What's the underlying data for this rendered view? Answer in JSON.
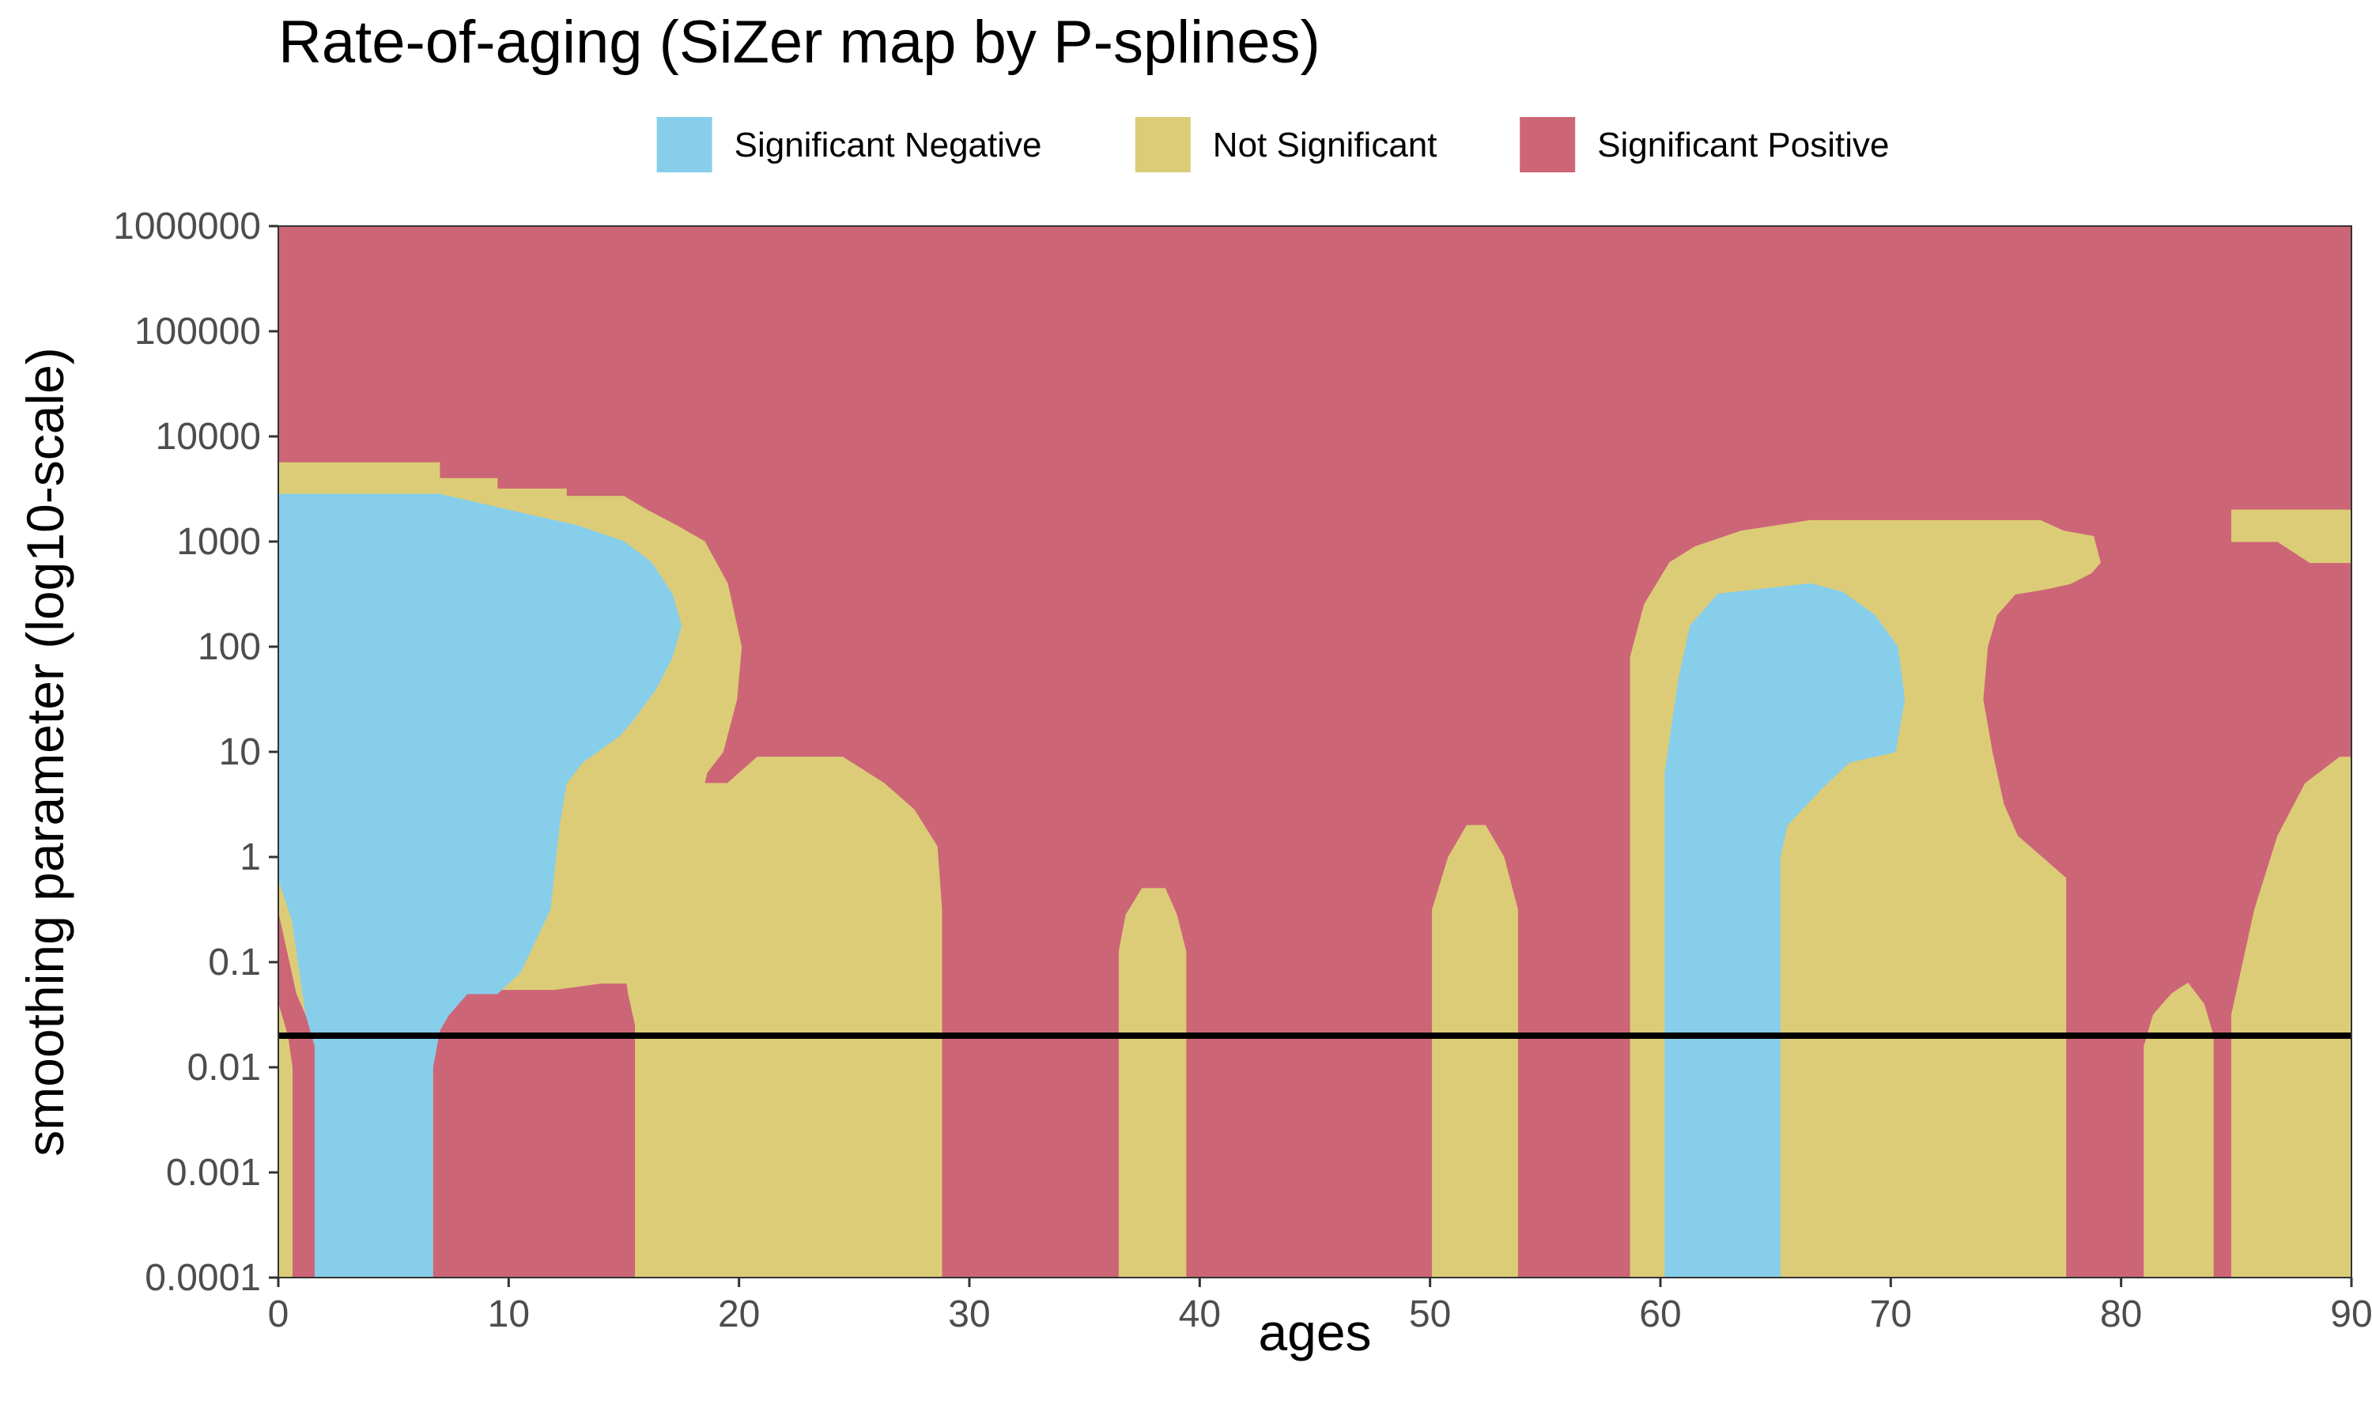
{
  "chart_data": {
    "type": "heatmap",
    "title": "Rate-of-aging (SiZer map by P-splines)",
    "xlabel": "ages",
    "ylabel": "smoothing parameter (log10-scale)",
    "xlim": [
      0,
      90
    ],
    "ylim": [
      0.0001,
      1000000
    ],
    "y_scale": "log10",
    "x_ticks": [
      0,
      10,
      20,
      30,
      40,
      50,
      60,
      70,
      80,
      90
    ],
    "y_ticks": [
      0.0001,
      0.001,
      0.01,
      0.1,
      1,
      10,
      100,
      1000,
      10000,
      100000,
      1000000
    ],
    "y_tick_labels": [
      "0.0001",
      "0.001",
      "0.01",
      "0.1",
      "1",
      "10",
      "100",
      "1000",
      "10000",
      "100000",
      "1000000"
    ],
    "legend": {
      "position": "top",
      "entries": [
        {
          "label": "Significant Negative",
          "color": "#87CEEB"
        },
        {
          "label": "Not Significant",
          "color": "#DDCC77"
        },
        {
          "label": "Significant Positive",
          "color": "#CC6677"
        }
      ]
    },
    "background_category": "Significant Positive",
    "reference_line": {
      "orientation": "horizontal",
      "y": 0.02,
      "color": "#000000"
    },
    "regions": [
      {
        "category": "Not Significant",
        "points": [
          [
            0,
            3.75
          ],
          [
            7,
            3.75
          ],
          [
            7,
            3.6
          ],
          [
            9.5,
            3.6
          ],
          [
            9.5,
            3.5
          ],
          [
            12.5,
            3.5
          ],
          [
            12.5,
            3.43
          ],
          [
            15,
            3.43
          ],
          [
            16,
            3.3
          ],
          [
            17.3,
            3.15
          ],
          [
            18.5,
            3.0
          ],
          [
            19.5,
            2.6
          ],
          [
            20.1,
            2.0
          ],
          [
            19.9,
            1.5
          ],
          [
            19.3,
            1.0
          ],
          [
            18.6,
            0.8
          ],
          [
            18.4,
            0.6
          ],
          [
            17.8,
            0.4
          ],
          [
            17.5,
            0.15
          ],
          [
            17.3,
            -0.3
          ],
          [
            17.3,
            -0.5
          ],
          [
            17,
            -0.8
          ],
          [
            17.5,
            -1.3
          ],
          [
            17.9,
            -1.5
          ],
          [
            18.8,
            -1.8
          ],
          [
            19.2,
            -2.0
          ],
          [
            19.6,
            -2.5
          ],
          [
            19.6,
            -4.0
          ],
          [
            15.5,
            -4.0
          ],
          [
            15.5,
            -1.6
          ],
          [
            15.2,
            -1.3
          ],
          [
            15.0,
            -1.0
          ],
          [
            14.7,
            -0.7
          ],
          [
            14.3,
            -0.5
          ],
          [
            14.3,
            0.0
          ],
          [
            14.8,
            0.35
          ],
          [
            15.3,
            0.45
          ],
          [
            17.7,
            0.45
          ],
          [
            18.3,
            0.2
          ],
          [
            18.3,
            -0.5
          ],
          [
            18.0,
            -1.0
          ],
          [
            17.5,
            -1.5
          ],
          [
            17.3,
            -1.7
          ],
          [
            16.4,
            -1.2
          ],
          [
            14.0,
            -1.2
          ],
          [
            12.0,
            -1.26
          ],
          [
            8.0,
            -1.26
          ],
          [
            7.4,
            -1.5
          ],
          [
            6.8,
            -1.7
          ],
          [
            6.7,
            -2.0
          ],
          [
            6.7,
            -4.0
          ],
          [
            1.6,
            -4.0
          ],
          [
            1.6,
            -1.7
          ],
          [
            0.8,
            -1.3
          ],
          [
            0.3,
            -0.8
          ],
          [
            0,
            -0.5
          ]
        ]
      },
      {
        "category": "Not Significant",
        "points": [
          [
            0,
            -1.4
          ],
          [
            0.4,
            -1.7
          ],
          [
            0.6,
            -2.0
          ],
          [
            0.6,
            -4.0
          ],
          [
            0,
            -4.0
          ]
        ]
      },
      {
        "category": "Not Significant",
        "points": [
          [
            16.9,
            -4.0
          ],
          [
            16.9,
            -0.5
          ],
          [
            17.8,
            0.4
          ],
          [
            17.8,
            0.7
          ],
          [
            19.5,
            0.7
          ],
          [
            20.8,
            0.95
          ],
          [
            24.5,
            0.95
          ],
          [
            26.3,
            0.7
          ],
          [
            27.6,
            0.45
          ],
          [
            28.6,
            0.1
          ],
          [
            28.8,
            -0.5
          ],
          [
            28.8,
            -4.0
          ]
        ]
      },
      {
        "category": "Not Significant",
        "points": [
          [
            36.5,
            -4.0
          ],
          [
            36.5,
            -0.9
          ],
          [
            36.8,
            -0.55
          ],
          [
            37.5,
            -0.3
          ],
          [
            38.5,
            -0.3
          ],
          [
            39.0,
            -0.55
          ],
          [
            39.4,
            -0.9
          ],
          [
            39.4,
            -4.0
          ]
        ]
      },
      {
        "category": "Not Significant",
        "points": [
          [
            50.1,
            -4.0
          ],
          [
            50.1,
            -0.5
          ],
          [
            50.8,
            0.0
          ],
          [
            51.6,
            0.3
          ],
          [
            52.4,
            0.3
          ],
          [
            53.2,
            0.0
          ],
          [
            53.8,
            -0.5
          ],
          [
            53.8,
            -4.0
          ]
        ]
      },
      {
        "category": "Not Significant",
        "points": [
          [
            58.7,
            -4.0
          ],
          [
            58.7,
            1.9
          ],
          [
            59.3,
            2.4
          ],
          [
            60.4,
            2.8
          ],
          [
            61.5,
            2.95
          ],
          [
            63.5,
            3.1
          ],
          [
            66.5,
            3.2
          ],
          [
            76.5,
            3.2
          ],
          [
            77.5,
            3.1
          ],
          [
            78.8,
            3.05
          ],
          [
            79.1,
            2.8
          ],
          [
            78.7,
            2.7
          ],
          [
            77.8,
            2.6
          ],
          [
            76.8,
            2.55
          ],
          [
            75.4,
            2.5
          ],
          [
            74.6,
            2.3
          ],
          [
            74.2,
            2.0
          ],
          [
            74.0,
            1.5
          ],
          [
            74.4,
            1.0
          ],
          [
            74.9,
            0.5
          ],
          [
            75.5,
            0.2
          ],
          [
            77.6,
            -0.2
          ],
          [
            77.6,
            -4.0
          ]
        ]
      },
      {
        "category": "Not Significant",
        "points": [
          [
            81.0,
            -4.0
          ],
          [
            81.0,
            -1.8
          ],
          [
            81.4,
            -1.5
          ],
          [
            82.2,
            -1.3
          ],
          [
            82.9,
            -1.2
          ],
          [
            83.6,
            -1.4
          ],
          [
            84.0,
            -1.7
          ],
          [
            84.0,
            -4.0
          ]
        ]
      },
      {
        "category": "Not Significant",
        "points": [
          [
            84.8,
            -4.0
          ],
          [
            84.8,
            -1.5
          ],
          [
            85.8,
            -0.5
          ],
          [
            86.8,
            0.2
          ],
          [
            88.0,
            0.7
          ],
          [
            89.5,
            0.95
          ],
          [
            90,
            0.95
          ],
          [
            90,
            -4.0
          ]
        ]
      },
      {
        "category": "Not Significant",
        "points": [
          [
            84.8,
            3.3
          ],
          [
            90,
            3.3
          ],
          [
            90,
            2.8
          ],
          [
            88.2,
            2.8
          ],
          [
            86.8,
            3.0
          ],
          [
            84.8,
            3.0
          ]
        ]
      },
      {
        "category": "Significant Negative",
        "points": [
          [
            0,
            3.45
          ],
          [
            7,
            3.45
          ],
          [
            9,
            3.35
          ],
          [
            11,
            3.25
          ],
          [
            13,
            3.15
          ],
          [
            15,
            3.0
          ],
          [
            16.2,
            2.8
          ],
          [
            17.1,
            2.5
          ],
          [
            17.5,
            2.2
          ],
          [
            17.1,
            1.9
          ],
          [
            16.4,
            1.6
          ],
          [
            15.4,
            1.3
          ],
          [
            14.8,
            1.15
          ],
          [
            13.2,
            0.9
          ],
          [
            12.5,
            0.7
          ],
          [
            12.2,
            0.3
          ],
          [
            11.8,
            -0.5
          ],
          [
            10.5,
            -1.1
          ],
          [
            9.5,
            -1.3
          ],
          [
            8.2,
            -1.3
          ],
          [
            7.4,
            -1.5
          ],
          [
            7.0,
            -1.65
          ],
          [
            6.7,
            -2.0
          ],
          [
            6.7,
            -4.0
          ],
          [
            1.6,
            -4.0
          ],
          [
            1.6,
            -1.8
          ],
          [
            1.2,
            -1.5
          ],
          [
            0.6,
            -0.6
          ],
          [
            0,
            -0.2
          ]
        ]
      },
      {
        "category": "Significant Negative",
        "points": [
          [
            60.2,
            -4.0
          ],
          [
            60.2,
            0.8
          ],
          [
            60.8,
            1.7
          ],
          [
            61.3,
            2.2
          ],
          [
            62.5,
            2.5
          ],
          [
            66.5,
            2.6
          ],
          [
            67.9,
            2.52
          ],
          [
            69.3,
            2.3
          ],
          [
            70.3,
            2.0
          ],
          [
            70.6,
            1.5
          ],
          [
            70.2,
            1.0
          ],
          [
            68.2,
            0.9
          ],
          [
            67.0,
            0.65
          ],
          [
            65.5,
            0.3
          ],
          [
            65.2,
            0.0
          ],
          [
            65.2,
            -4.0
          ]
        ]
      }
    ]
  }
}
